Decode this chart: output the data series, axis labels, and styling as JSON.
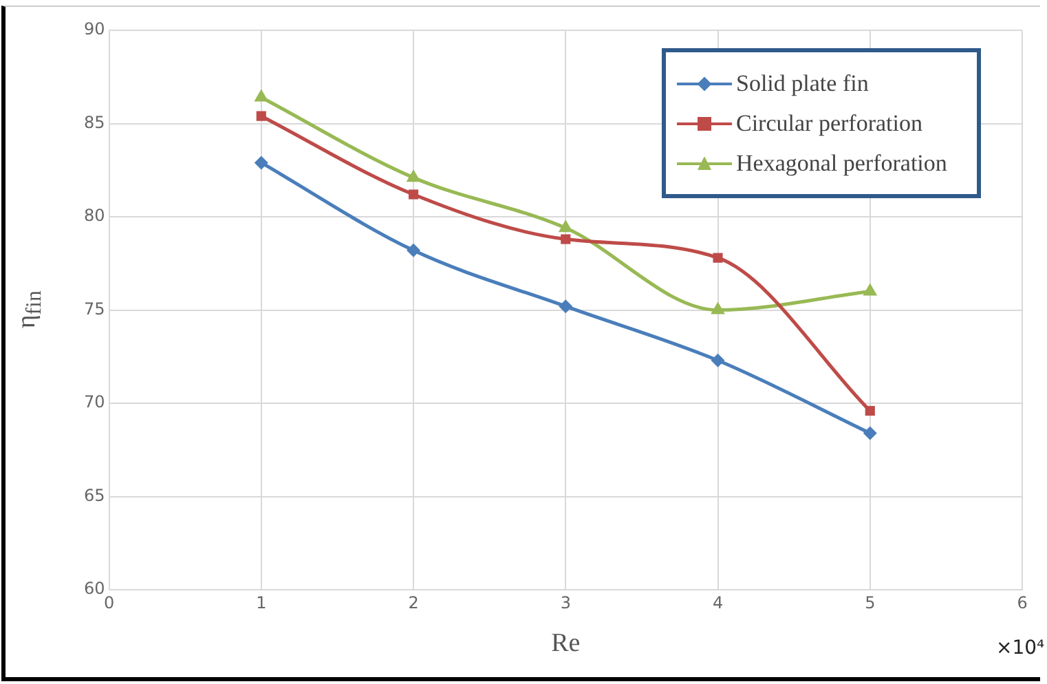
{
  "chart_data": {
    "type": "line",
    "xlabel": "Re",
    "ylabel": "η$_{fin}$",
    "annotations": [
      "×10⁴"
    ],
    "x": [
      1,
      2,
      3,
      4,
      5
    ],
    "xlim": [
      0,
      6
    ],
    "xticks": [
      0,
      1,
      2,
      3,
      4,
      5,
      6
    ],
    "ylim": [
      60,
      90
    ],
    "yticks": [
      60,
      65,
      70,
      75,
      80,
      85,
      90
    ],
    "grid": true,
    "legend": "top right",
    "line_style": "solid",
    "series": [
      {
        "name": "Solid plate fin",
        "color": "#4a7ebb",
        "marker": "diamond",
        "values": [
          82.9,
          78.2,
          75.2,
          72.3,
          68.4
        ]
      },
      {
        "name": "Circular perforation",
        "color": "#be4b48",
        "marker": "square",
        "values": [
          85.4,
          81.2,
          78.8,
          77.8,
          69.6
        ]
      },
      {
        "name": "Hexagonal perforation",
        "color": "#98b954",
        "marker": "triangle",
        "values": [
          86.4,
          82.1,
          79.4,
          75.0,
          76.0
        ]
      }
    ]
  }
}
